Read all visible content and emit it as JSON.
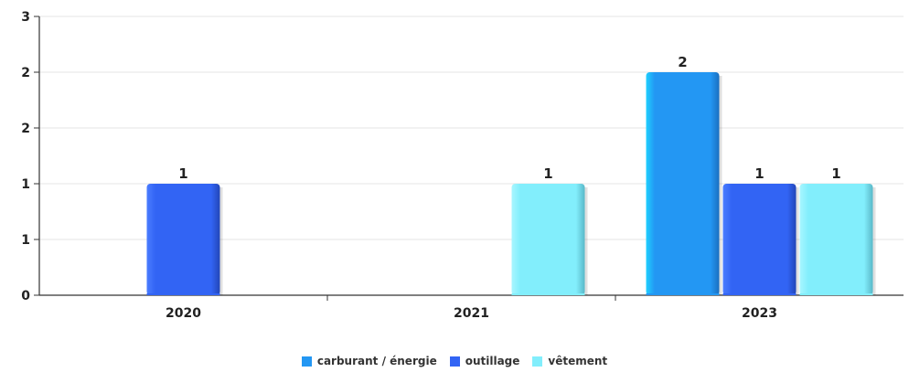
{
  "chart_data": {
    "type": "bar",
    "categories": [
      "2020",
      "2021",
      "2023"
    ],
    "series": [
      {
        "name": "carburant / énergie",
        "color": "#2397f3",
        "values": [
          null,
          null,
          2
        ]
      },
      {
        "name": "outillage",
        "color": "#3264f4",
        "values": [
          1,
          null,
          1
        ]
      },
      {
        "name": "vêtement",
        "color": "#82eefc",
        "values": [
          null,
          1,
          1
        ]
      }
    ],
    "yaxis": {
      "min": 0,
      "max": 2.5,
      "tick_values": [
        0,
        0.5,
        1,
        1.5,
        2,
        2.5
      ],
      "tick_labels": [
        "0",
        "1",
        "1",
        "2",
        "2",
        "3"
      ]
    },
    "data_labels": true,
    "grid": true,
    "legend_position": "bottom-center"
  }
}
